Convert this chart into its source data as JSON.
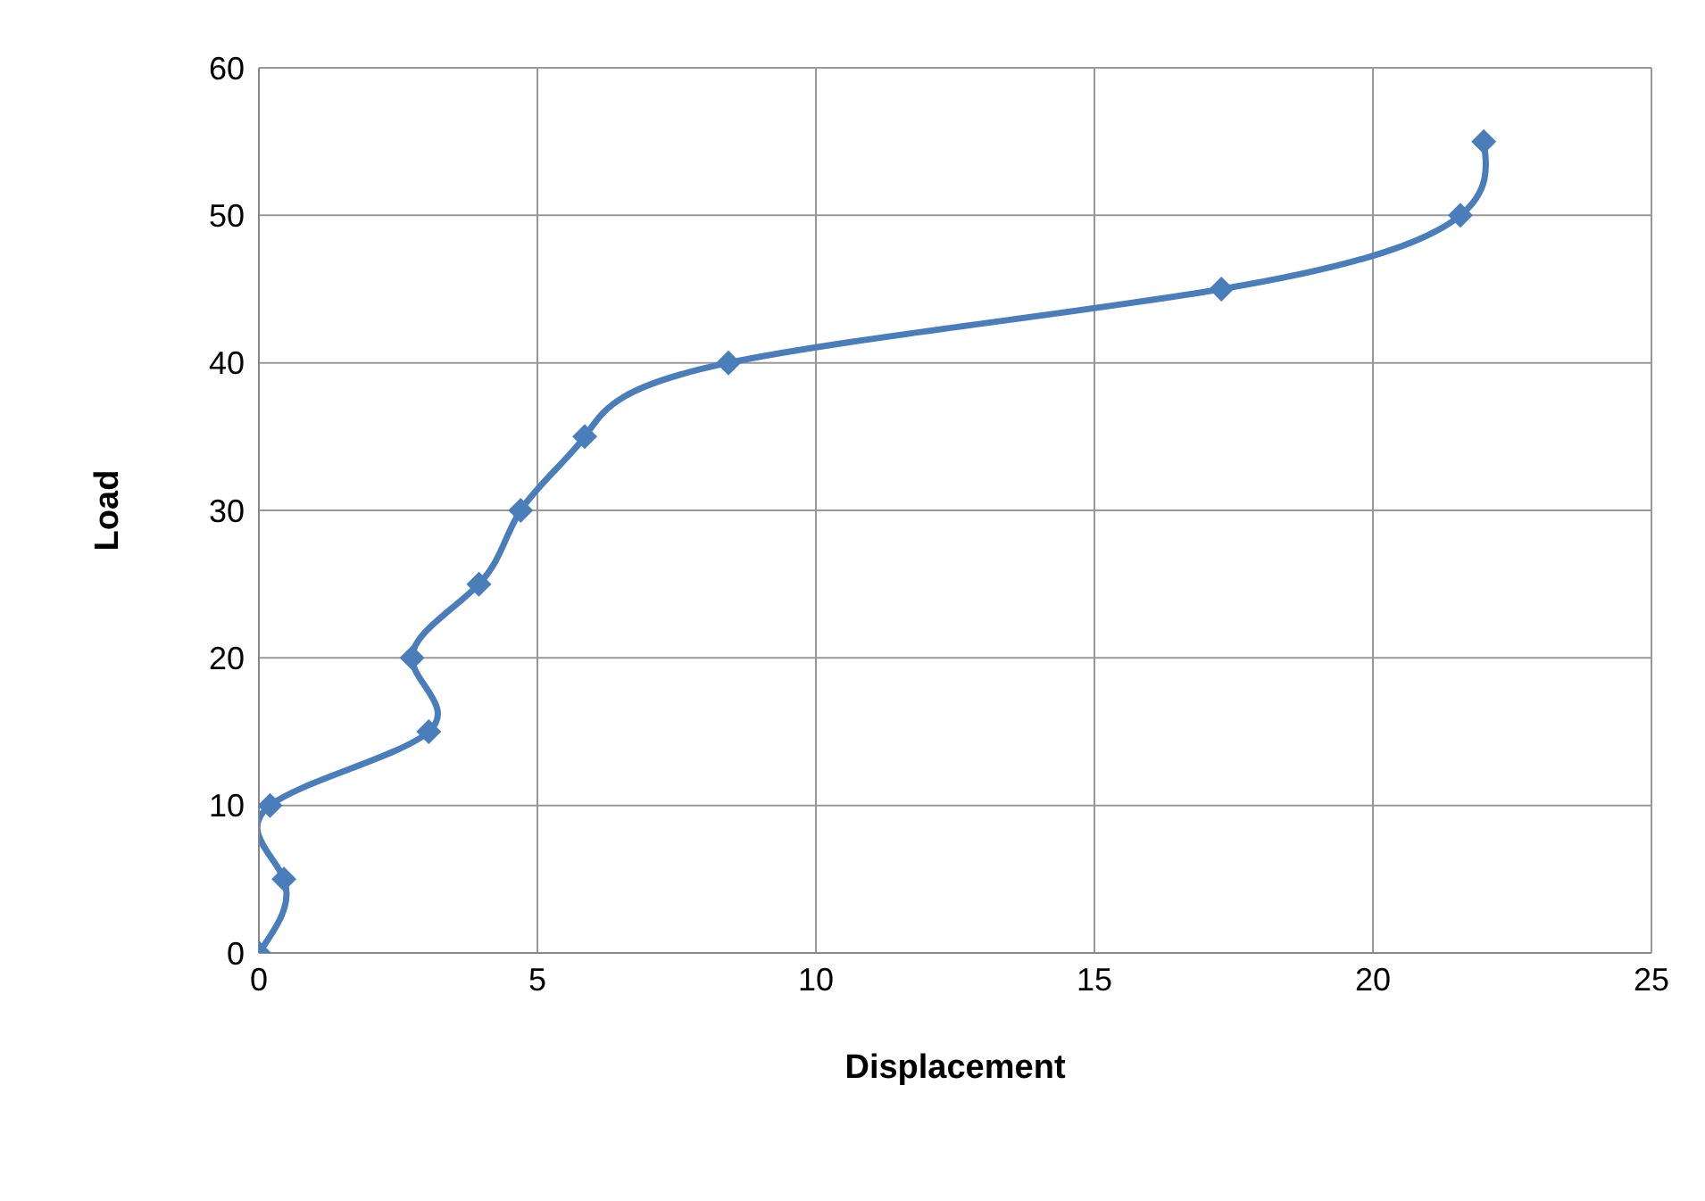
{
  "chart_data": {
    "type": "line",
    "xlabel": "Displacement",
    "ylabel": "Load",
    "x": [
      0,
      0.45,
      0.2,
      3.05,
      2.75,
      3.95,
      4.7,
      5.85,
      8.43,
      17.28,
      21.57,
      21.99
    ],
    "series": [
      {
        "color": "#4a7ebb",
        "values": [
          0,
          5,
          10,
          15,
          20,
          25,
          30,
          35,
          40,
          45,
          50,
          55
        ]
      }
    ],
    "xlim": [
      0,
      25
    ],
    "xticks": [
      0,
      5,
      10,
      15,
      20,
      25
    ],
    "ylim": [
      0,
      60
    ],
    "yticks": [
      0,
      10,
      20,
      30,
      40,
      50,
      60
    ],
    "grid": true,
    "marker": "diamond",
    "line_style": "solid",
    "legend": false
  }
}
